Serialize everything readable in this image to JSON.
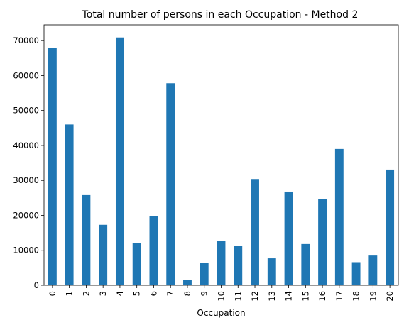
{
  "chart_data": {
    "type": "bar",
    "title": "Total number of persons in each Occupation - Method 2",
    "xlabel": "Occupation",
    "ylabel": "",
    "categories": [
      "0",
      "1",
      "2",
      "3",
      "4",
      "5",
      "6",
      "7",
      "8",
      "9",
      "10",
      "11",
      "12",
      "13",
      "14",
      "15",
      "16",
      "17",
      "18",
      "19",
      "20"
    ],
    "values": [
      68000,
      46000,
      25800,
      17300,
      70900,
      12100,
      19700,
      57800,
      1600,
      6300,
      12600,
      11300,
      30400,
      7700,
      26800,
      11800,
      24700,
      39000,
      6600,
      8500,
      33100
    ],
    "ylim": [
      0,
      74500
    ],
    "yticks": [
      0,
      10000,
      20000,
      30000,
      40000,
      50000,
      60000,
      70000
    ],
    "ytick_labels": [
      "0",
      "10000",
      "20000",
      "30000",
      "40000",
      "50000",
      "60000",
      "70000"
    ],
    "bar_color": "#1f77b4",
    "grid": false,
    "legend": "none"
  }
}
